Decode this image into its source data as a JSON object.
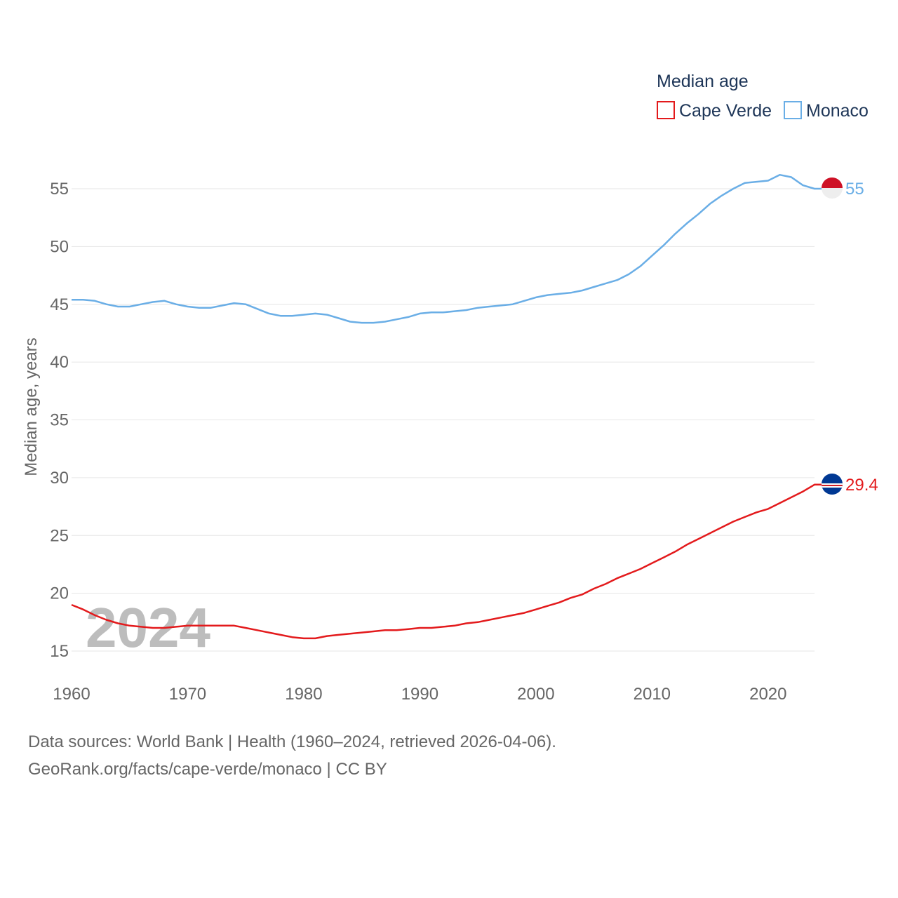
{
  "chart_data": {
    "type": "line",
    "title": "Median age",
    "xlabel": "",
    "ylabel": "Median age, years",
    "xlim": [
      1960,
      2024
    ],
    "ylim": [
      13,
      57
    ],
    "xticks": [
      1960,
      1970,
      1980,
      1990,
      2000,
      2010,
      2020
    ],
    "yticks": [
      15,
      20,
      25,
      30,
      35,
      40,
      45,
      50,
      55
    ],
    "grid": true,
    "legend": "top-right",
    "year_label": "2024",
    "x": [
      1960,
      1961,
      1962,
      1963,
      1964,
      1965,
      1966,
      1967,
      1968,
      1969,
      1970,
      1971,
      1972,
      1973,
      1974,
      1975,
      1976,
      1977,
      1978,
      1979,
      1980,
      1981,
      1982,
      1983,
      1984,
      1985,
      1986,
      1987,
      1988,
      1989,
      1990,
      1991,
      1992,
      1993,
      1994,
      1995,
      1996,
      1997,
      1998,
      1999,
      2000,
      2001,
      2002,
      2003,
      2004,
      2005,
      2006,
      2007,
      2008,
      2009,
      2010,
      2011,
      2012,
      2013,
      2014,
      2015,
      2016,
      2017,
      2018,
      2019,
      2020,
      2021,
      2022,
      2023,
      2024
    ],
    "series": [
      {
        "name": "Cape Verde",
        "color": "#e31a1c",
        "end_label": "29.4",
        "flag": "cape-verde-flag-icon",
        "values": [
          19.0,
          18.6,
          18.1,
          17.7,
          17.4,
          17.2,
          17.1,
          17.0,
          17.0,
          17.1,
          17.2,
          17.2,
          17.2,
          17.2,
          17.2,
          17.0,
          16.8,
          16.6,
          16.4,
          16.2,
          16.1,
          16.1,
          16.3,
          16.4,
          16.5,
          16.6,
          16.7,
          16.8,
          16.8,
          16.9,
          17.0,
          17.0,
          17.1,
          17.2,
          17.4,
          17.5,
          17.7,
          17.9,
          18.1,
          18.3,
          18.6,
          18.9,
          19.2,
          19.6,
          19.9,
          20.4,
          20.8,
          21.3,
          21.7,
          22.1,
          22.6,
          23.1,
          23.6,
          24.2,
          24.7,
          25.2,
          25.7,
          26.2,
          26.6,
          27.0,
          27.3,
          27.8,
          28.3,
          28.8,
          29.4
        ]
      },
      {
        "name": "Monaco",
        "color": "#6aaee6",
        "end_label": "55",
        "flag": "monaco-flag-icon",
        "values": [
          45.4,
          45.4,
          45.3,
          45.0,
          44.8,
          44.8,
          45.0,
          45.2,
          45.3,
          45.0,
          44.8,
          44.7,
          44.7,
          44.9,
          45.1,
          45.0,
          44.6,
          44.2,
          44.0,
          44.0,
          44.1,
          44.2,
          44.1,
          43.8,
          43.5,
          43.4,
          43.4,
          43.5,
          43.7,
          43.9,
          44.2,
          44.3,
          44.3,
          44.4,
          44.5,
          44.7,
          44.8,
          44.9,
          45.0,
          45.3,
          45.6,
          45.8,
          45.9,
          46.0,
          46.2,
          46.5,
          46.8,
          47.1,
          47.6,
          48.3,
          49.2,
          50.1,
          51.1,
          52.0,
          52.8,
          53.7,
          54.4,
          55.0,
          55.5,
          55.6,
          55.7,
          56.2,
          56.0,
          55.3,
          55.0
        ]
      }
    ]
  },
  "footer": {
    "sources": "Data sources: World Bank | Health (1960–2024, retrieved 2026-04-06).",
    "attribution": "GeoRank.org/facts/cape-verde/monaco | CC BY"
  }
}
